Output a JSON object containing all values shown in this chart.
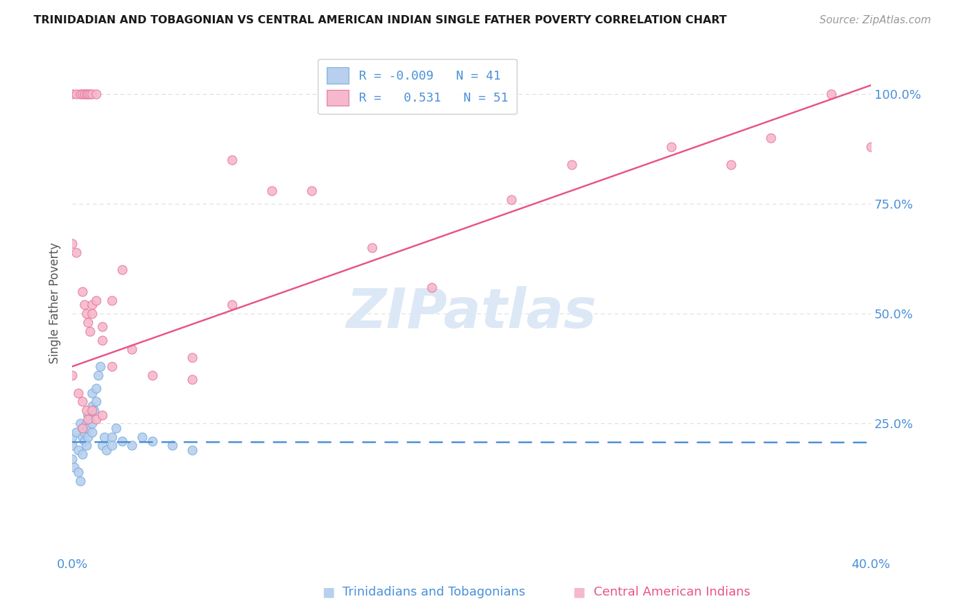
{
  "title": "TRINIDADIAN AND TOBAGONIAN VS CENTRAL AMERICAN INDIAN SINGLE FATHER POVERTY CORRELATION CHART",
  "source": "Source: ZipAtlas.com",
  "ylabel": "Single Father Poverty",
  "ytick_labels": [
    "100.0%",
    "75.0%",
    "50.0%",
    "25.0%"
  ],
  "ytick_values": [
    1.0,
    0.75,
    0.5,
    0.25
  ],
  "xlim": [
    0.0,
    0.4
  ],
  "ylim": [
    -0.05,
    1.1
  ],
  "legend_label1": "R = -0.009   N = 41",
  "legend_label2": "R =   0.531   N = 51",
  "legend_label_blue": "Trinidadians and Tobagonians",
  "legend_label_pink": "Central American Indians",
  "watermark": "ZIPatlas",
  "blue_scatter": [
    [
      0.0,
      0.2
    ],
    [
      0.0,
      0.22
    ],
    [
      0.002,
      0.23
    ],
    [
      0.003,
      0.19
    ],
    [
      0.004,
      0.25
    ],
    [
      0.005,
      0.22
    ],
    [
      0.005,
      0.24
    ],
    [
      0.005,
      0.18
    ],
    [
      0.006,
      0.21
    ],
    [
      0.006,
      0.23
    ],
    [
      0.007,
      0.2
    ],
    [
      0.007,
      0.25
    ],
    [
      0.008,
      0.22
    ],
    [
      0.008,
      0.24
    ],
    [
      0.008,
      0.27
    ],
    [
      0.009,
      0.26
    ],
    [
      0.01,
      0.23
    ],
    [
      0.01,
      0.25
    ],
    [
      0.01,
      0.29
    ],
    [
      0.01,
      0.32
    ],
    [
      0.011,
      0.28
    ],
    [
      0.012,
      0.3
    ],
    [
      0.012,
      0.33
    ],
    [
      0.013,
      0.36
    ],
    [
      0.014,
      0.38
    ],
    [
      0.015,
      0.2
    ],
    [
      0.016,
      0.22
    ],
    [
      0.017,
      0.19
    ],
    [
      0.02,
      0.22
    ],
    [
      0.02,
      0.2
    ],
    [
      0.022,
      0.24
    ],
    [
      0.025,
      0.21
    ],
    [
      0.03,
      0.2
    ],
    [
      0.035,
      0.22
    ],
    [
      0.04,
      0.21
    ],
    [
      0.05,
      0.2
    ],
    [
      0.06,
      0.19
    ],
    [
      0.0,
      0.17
    ],
    [
      0.001,
      0.15
    ],
    [
      0.003,
      0.14
    ],
    [
      0.004,
      0.12
    ]
  ],
  "pink_scatter": [
    [
      0.0,
      1.0
    ],
    [
      0.002,
      1.0
    ],
    [
      0.004,
      1.0
    ],
    [
      0.005,
      1.0
    ],
    [
      0.006,
      1.0
    ],
    [
      0.007,
      1.0
    ],
    [
      0.008,
      1.0
    ],
    [
      0.009,
      1.0
    ],
    [
      0.01,
      1.0
    ],
    [
      0.012,
      1.0
    ],
    [
      0.0,
      0.66
    ],
    [
      0.002,
      0.64
    ],
    [
      0.005,
      0.55
    ],
    [
      0.006,
      0.52
    ],
    [
      0.007,
      0.5
    ],
    [
      0.008,
      0.48
    ],
    [
      0.009,
      0.46
    ],
    [
      0.01,
      0.5
    ],
    [
      0.01,
      0.52
    ],
    [
      0.012,
      0.53
    ],
    [
      0.015,
      0.47
    ],
    [
      0.015,
      0.44
    ],
    [
      0.02,
      0.53
    ],
    [
      0.025,
      0.6
    ],
    [
      0.0,
      0.36
    ],
    [
      0.003,
      0.32
    ],
    [
      0.005,
      0.3
    ],
    [
      0.007,
      0.28
    ],
    [
      0.008,
      0.26
    ],
    [
      0.01,
      0.28
    ],
    [
      0.012,
      0.26
    ],
    [
      0.015,
      0.27
    ],
    [
      0.03,
      0.42
    ],
    [
      0.06,
      0.35
    ],
    [
      0.08,
      0.85
    ],
    [
      0.1,
      0.78
    ],
    [
      0.12,
      0.78
    ],
    [
      0.15,
      0.65
    ],
    [
      0.18,
      0.56
    ],
    [
      0.22,
      0.76
    ],
    [
      0.25,
      0.84
    ],
    [
      0.3,
      0.88
    ],
    [
      0.33,
      0.84
    ],
    [
      0.35,
      0.9
    ],
    [
      0.38,
      1.0
    ],
    [
      0.4,
      0.88
    ],
    [
      0.005,
      0.24
    ],
    [
      0.02,
      0.38
    ],
    [
      0.04,
      0.36
    ],
    [
      0.06,
      0.4
    ],
    [
      0.08,
      0.52
    ]
  ],
  "blue_line_y": [
    0.208,
    0.207
  ],
  "pink_line_y": [
    0.38,
    1.02
  ],
  "background_color": "#ffffff",
  "grid_color": "#dddddd",
  "blue_line_color": "#4a90d9",
  "pink_line_color": "#e8538a",
  "blue_scatter_fill": "#b8d0ed",
  "blue_scatter_edge": "#7aaedd",
  "pink_scatter_fill": "#f5b8cc",
  "pink_scatter_edge": "#e8789a",
  "title_color": "#1a1a1a",
  "axis_color": "#4a90d9",
  "source_color": "#999999",
  "watermark_color": "#dce8f5"
}
